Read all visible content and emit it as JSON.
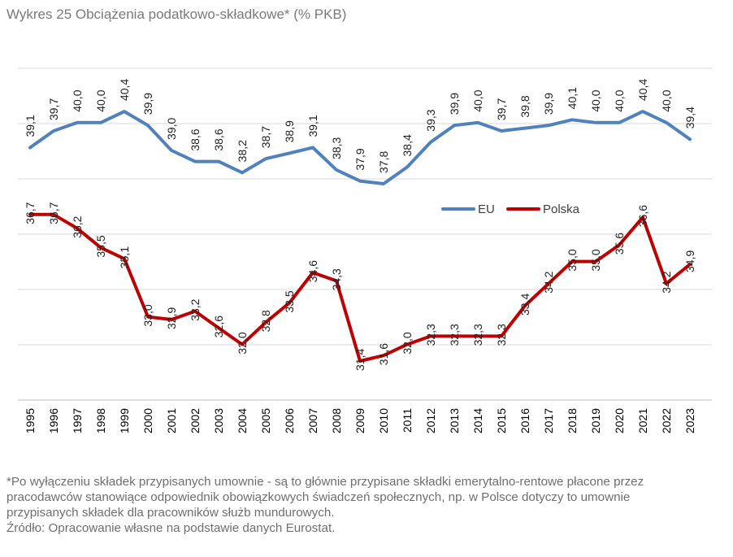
{
  "title": "Wykres 25 Obciążenia podatkowo-składkowe* (% PKB)",
  "chart_data": {
    "type": "line",
    "title": "Wykres 25 Obciążenia podatkowo-składkowe* (% PKB)",
    "x": [
      "1995",
      "1996",
      "1997",
      "1998",
      "1999",
      "2000",
      "2001",
      "2002",
      "2003",
      "2004",
      "2005",
      "2006",
      "2007",
      "2008",
      "2009",
      "2010",
      "2011",
      "2012",
      "2013",
      "2014",
      "2015",
      "2016",
      "2017",
      "2018",
      "2019",
      "2020",
      "2021",
      "2022",
      "2023"
    ],
    "series": [
      {
        "name": "EU",
        "color": "#4f81bd",
        "values": [
          39.1,
          39.7,
          40.0,
          40.0,
          40.4,
          39.9,
          39.0,
          38.6,
          38.6,
          38.2,
          38.7,
          38.9,
          39.1,
          38.3,
          37.9,
          37.8,
          38.4,
          39.3,
          39.9,
          40.0,
          39.7,
          39.8,
          39.9,
          40.1,
          40.0,
          40.0,
          40.4,
          40.0,
          39.4
        ],
        "labels": [
          "39,1",
          "39,7",
          "40,0",
          "40,0",
          "40,4",
          "39,9",
          "39,0",
          "38,6",
          "38,6",
          "38,2",
          "38,7",
          "38,9",
          "39,1",
          "38,3",
          "37,9",
          "37,8",
          "38,4",
          "39,3",
          "39,9",
          "40,0",
          "39,7",
          "39,8",
          "39,9",
          "40,1",
          "40,0",
          "40,0",
          "40,4",
          "40,0",
          "39,4"
        ]
      },
      {
        "name": "Polska",
        "color": "#c00000",
        "values": [
          36.7,
          36.7,
          36.2,
          35.5,
          35.1,
          33.0,
          32.9,
          33.2,
          32.6,
          32.0,
          32.8,
          33.5,
          34.6,
          34.3,
          31.4,
          31.6,
          32.0,
          32.3,
          32.3,
          32.3,
          32.3,
          33.4,
          34.2,
          35.0,
          35.0,
          35.6,
          36.6,
          34.2,
          34.9
        ],
        "labels": [
          "36,7",
          "36,7",
          "36,2",
          "35,5",
          "35,1",
          "33,0",
          "32,9",
          "33,2",
          "32,6",
          "32,0",
          "32,8",
          "33,5",
          "34,6",
          "34,3",
          "31,4",
          "31,6",
          "32,0",
          "32,3",
          "32,3",
          "32,3",
          "32,3",
          "33,4",
          "34,2",
          "35,0",
          "35,0",
          "35,6",
          "36,6",
          "34,2",
          "34,9"
        ]
      }
    ],
    "legend": [
      "EU",
      "Polska"
    ],
    "legend_position": "center-right",
    "grid": true,
    "xlabel": "",
    "ylabel": ""
  },
  "footnote": {
    "line1": "*Po wyłączeniu składek przypisanych umownie - są to głównie przypisane składki emerytalno-rentowe płacone przez",
    "line2": "pracodawców stanowiące odpowiednik obowiązkowych świadczeń społecznych, np. w Polsce dotyczy to umownie",
    "line3": "przypisanych składek dla pracowników służb mundurowych.",
    "source": "Źródło: Opracowanie własne na podstawie danych Eurostat."
  }
}
